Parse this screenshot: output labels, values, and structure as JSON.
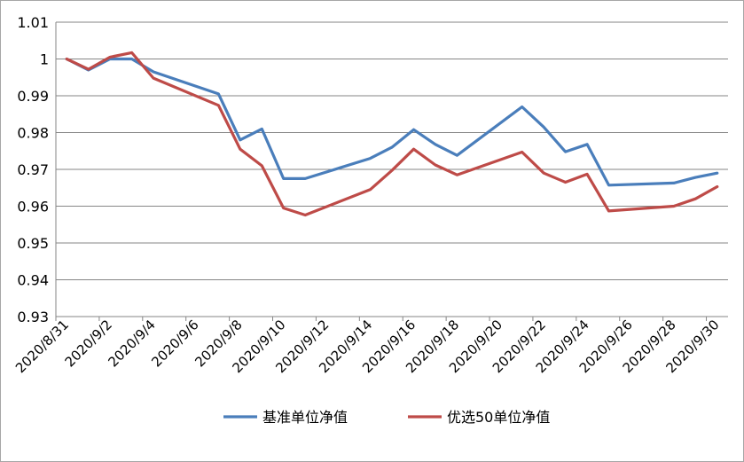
{
  "chart_data": {
    "type": "line",
    "title": "",
    "xlabel": "",
    "ylabel": "",
    "ylim": [
      0.93,
      1.01
    ],
    "yticks": [
      "0.93",
      "0.94",
      "0.95",
      "0.96",
      "0.97",
      "0.98",
      "0.99",
      "1",
      "1.01"
    ],
    "x_ticks": [
      "2020/8/31",
      "2020/9/2",
      "2020/9/4",
      "2020/9/6",
      "2020/9/8",
      "2020/9/10",
      "2020/9/12",
      "2020/9/14",
      "2020/9/16",
      "2020/9/18",
      "2020/9/20",
      "2020/9/22",
      "2020/9/24",
      "2020/9/26",
      "2020/9/28",
      "2020/9/30"
    ],
    "grid": "horizontal",
    "legend_position": "bottom",
    "series": [
      {
        "name": "基准单位净值",
        "color": "#4a7ebb",
        "points": [
          [
            "2020/8/31",
            1.0
          ],
          [
            "2020/9/1",
            0.997
          ],
          [
            "2020/9/2",
            1.0
          ],
          [
            "2020/9/3",
            1.0
          ],
          [
            "2020/9/4",
            0.9965
          ],
          [
            "2020/9/7",
            0.9905
          ],
          [
            "2020/9/8",
            0.978
          ],
          [
            "2020/9/9",
            0.981
          ],
          [
            "2020/9/10",
            0.9675
          ],
          [
            "2020/9/11",
            0.9675
          ],
          [
            "2020/9/14",
            0.973
          ],
          [
            "2020/9/15",
            0.976
          ],
          [
            "2020/9/16",
            0.9808
          ],
          [
            "2020/9/17",
            0.9768
          ],
          [
            "2020/9/18",
            0.9738
          ],
          [
            "2020/9/21",
            0.987
          ],
          [
            "2020/9/22",
            0.9815
          ],
          [
            "2020/9/23",
            0.9748
          ],
          [
            "2020/9/24",
            0.9768
          ],
          [
            "2020/9/25",
            0.9657
          ],
          [
            "2020/9/28",
            0.9663
          ],
          [
            "2020/9/29",
            0.9678
          ],
          [
            "2020/9/30",
            0.969
          ]
        ]
      },
      {
        "name": "优选50单位净值",
        "color": "#be4b48",
        "points": [
          [
            "2020/8/31",
            1.0
          ],
          [
            "2020/9/1",
            0.9972
          ],
          [
            "2020/9/2",
            1.0005
          ],
          [
            "2020/9/3",
            1.0017
          ],
          [
            "2020/9/4",
            0.9948
          ],
          [
            "2020/9/7",
            0.9874
          ],
          [
            "2020/9/8",
            0.9755
          ],
          [
            "2020/9/9",
            0.971
          ],
          [
            "2020/9/10",
            0.9595
          ],
          [
            "2020/9/11",
            0.9576
          ],
          [
            "2020/9/14",
            0.9645
          ],
          [
            "2020/9/15",
            0.9697
          ],
          [
            "2020/9/16",
            0.9755
          ],
          [
            "2020/9/17",
            0.9712
          ],
          [
            "2020/9/18",
            0.9685
          ],
          [
            "2020/9/21",
            0.9747
          ],
          [
            "2020/9/22",
            0.969
          ],
          [
            "2020/9/23",
            0.9665
          ],
          [
            "2020/9/24",
            0.9687
          ],
          [
            "2020/9/25",
            0.9587
          ],
          [
            "2020/9/28",
            0.96
          ],
          [
            "2020/9/29",
            0.962
          ],
          [
            "2020/9/30",
            0.9653
          ]
        ]
      }
    ]
  }
}
